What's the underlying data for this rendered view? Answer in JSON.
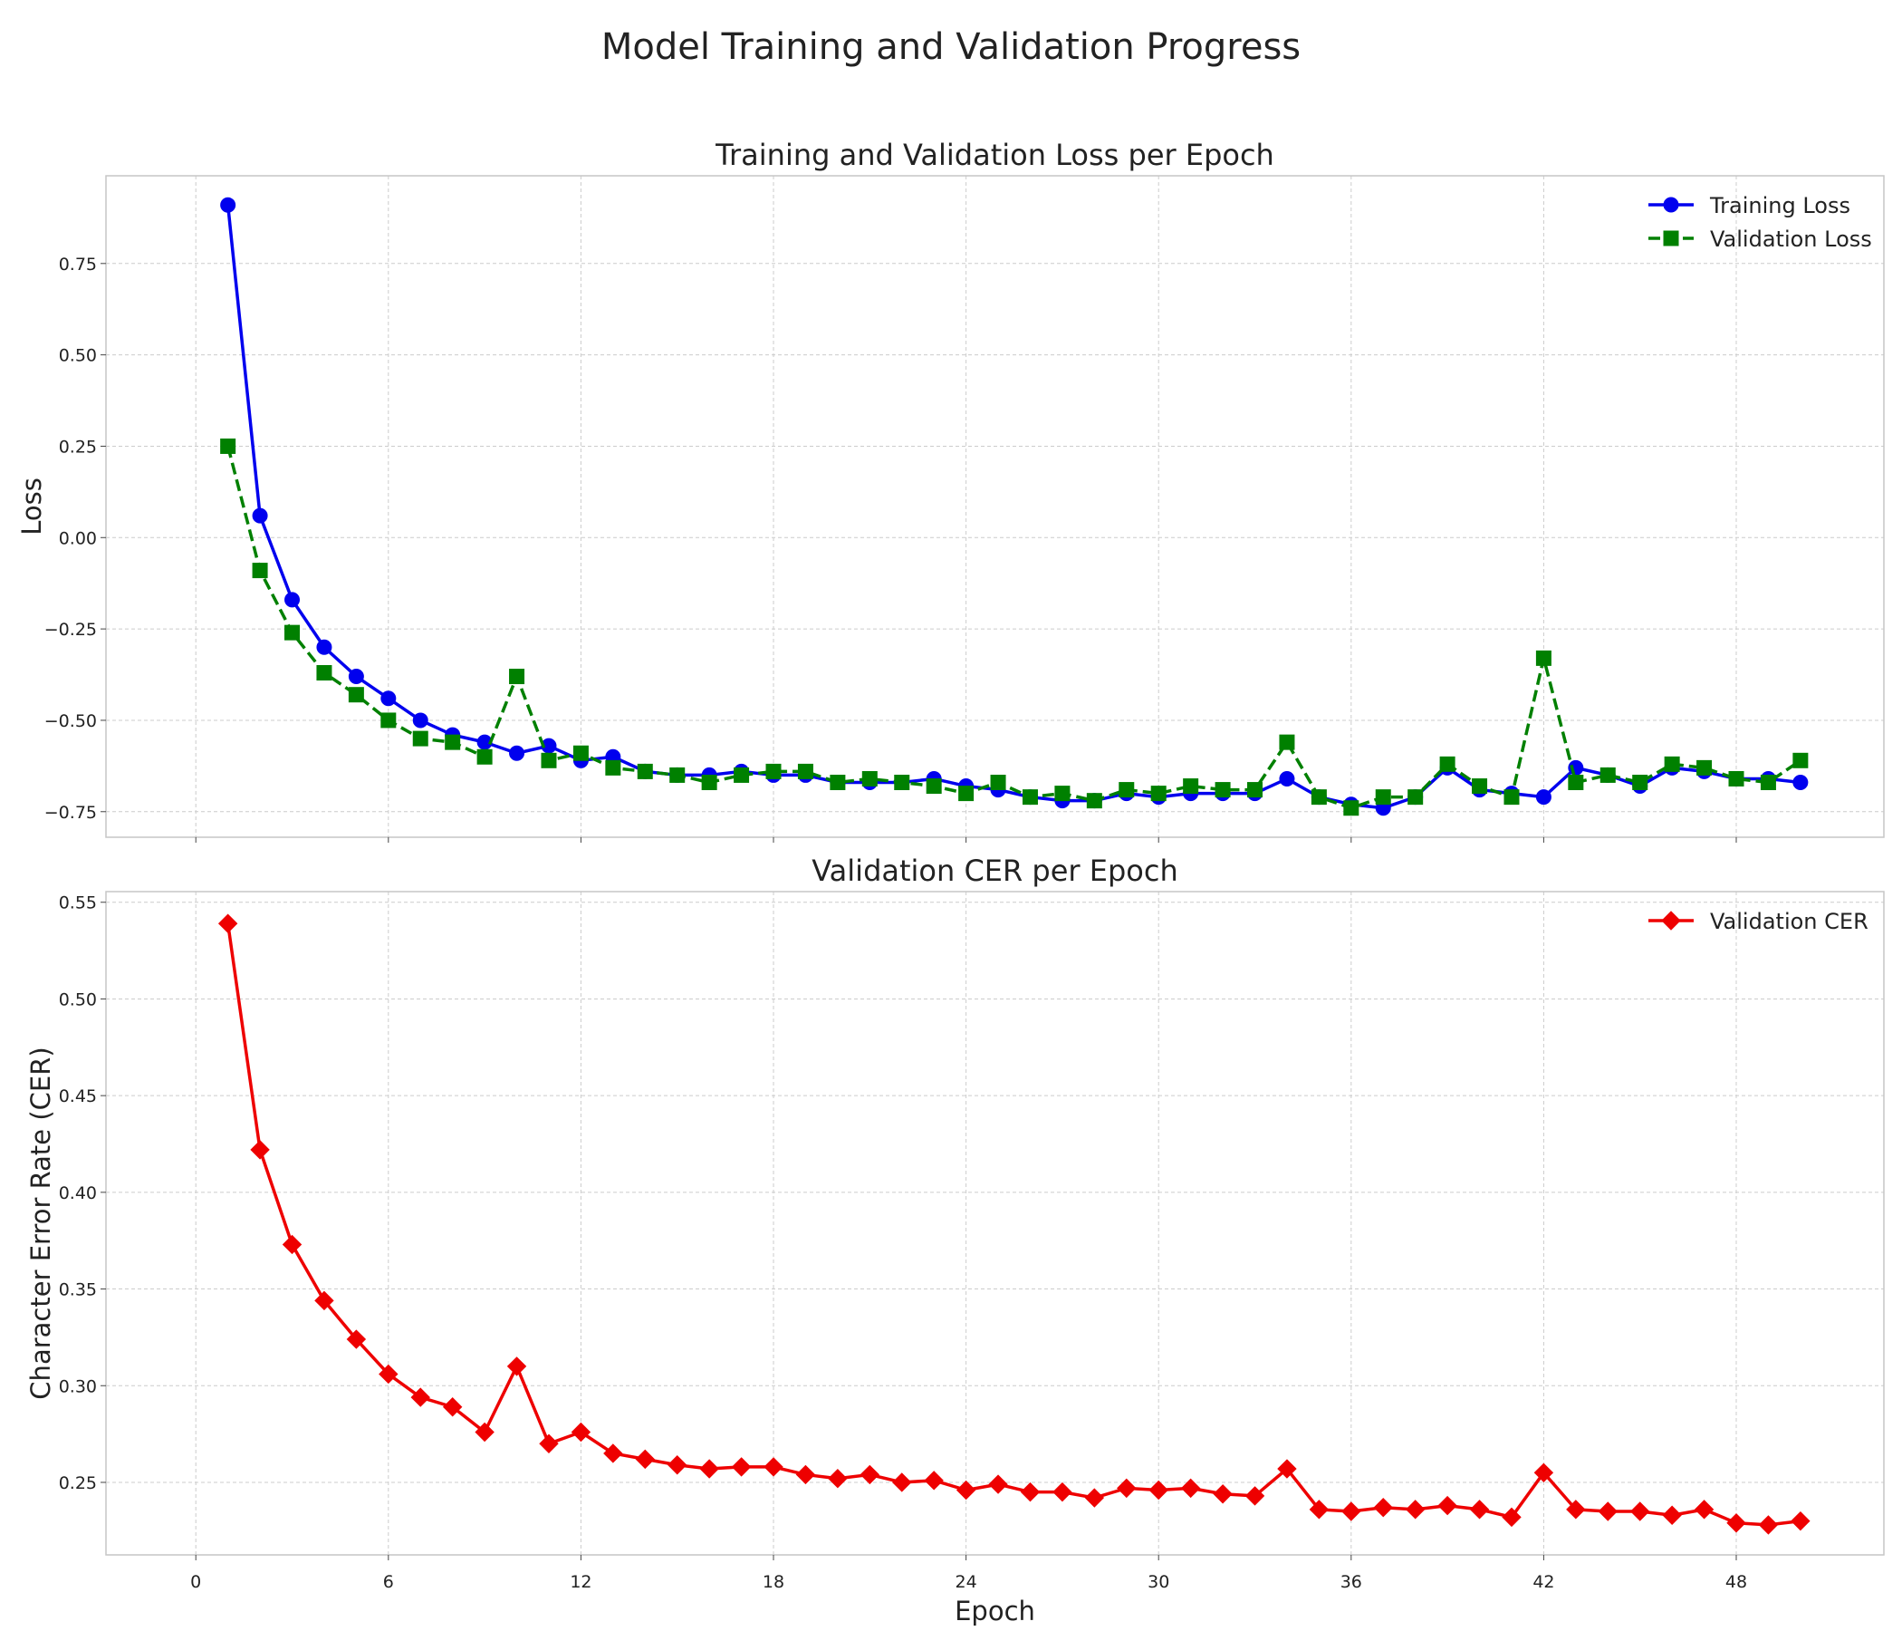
{
  "figure_title": "Model Training and Validation Progress",
  "chart_data": [
    {
      "type": "line",
      "title": "Training and Validation Loss per Epoch",
      "xlabel": "",
      "ylabel": "Loss",
      "xlim": [
        -2.8,
        52.6
      ],
      "ylim": [
        -0.82,
        0.99
      ],
      "x_ticks": [
        0,
        6,
        12,
        18,
        24,
        30,
        36,
        42,
        48
      ],
      "x_tick_labels": [
        "",
        "",
        "",
        "",
        "",
        "",
        "",
        "",
        ""
      ],
      "y_ticks": [
        -0.75,
        -0.5,
        -0.25,
        0.0,
        0.25,
        0.5,
        0.75
      ],
      "y_tick_labels": [
        "−0.75",
        "−0.50",
        "−0.25",
        "0.00",
        "0.25",
        "0.50",
        "0.75"
      ],
      "grid": true,
      "legend": "top-right",
      "x": [
        1,
        2,
        3,
        4,
        5,
        6,
        7,
        8,
        9,
        10,
        11,
        12,
        13,
        14,
        15,
        16,
        17,
        18,
        19,
        20,
        21,
        22,
        23,
        24,
        25,
        26,
        27,
        28,
        29,
        30,
        31,
        32,
        33,
        34,
        35,
        36,
        37,
        38,
        39,
        40,
        41,
        42,
        43,
        44,
        45,
        46,
        47,
        48,
        49,
        50
      ],
      "series": [
        {
          "name": "Training Loss",
          "color": "#0000ee",
          "marker": "circle",
          "dash": "solid",
          "values": [
            0.91,
            0.06,
            -0.17,
            -0.3,
            -0.38,
            -0.44,
            -0.5,
            -0.54,
            -0.56,
            -0.59,
            -0.57,
            -0.61,
            -0.6,
            -0.64,
            -0.65,
            -0.65,
            -0.64,
            -0.65,
            -0.65,
            -0.67,
            -0.67,
            -0.67,
            -0.66,
            -0.68,
            -0.69,
            -0.71,
            -0.72,
            -0.72,
            -0.7,
            -0.71,
            -0.7,
            -0.7,
            -0.7,
            -0.66,
            -0.71,
            -0.73,
            -0.74,
            -0.71,
            -0.63,
            -0.69,
            -0.7,
            -0.71,
            -0.63,
            -0.65,
            -0.68,
            -0.63,
            -0.64,
            -0.66,
            -0.66,
            -0.67
          ]
        },
        {
          "name": "Validation Loss",
          "color": "#008000",
          "marker": "square",
          "dash": "dashed",
          "values": [
            0.25,
            -0.09,
            -0.26,
            -0.37,
            -0.43,
            -0.5,
            -0.55,
            -0.56,
            -0.6,
            -0.38,
            -0.61,
            -0.59,
            -0.63,
            -0.64,
            -0.65,
            -0.67,
            -0.65,
            -0.64,
            -0.64,
            -0.67,
            -0.66,
            -0.67,
            -0.68,
            -0.7,
            -0.67,
            -0.71,
            -0.7,
            -0.72,
            -0.69,
            -0.7,
            -0.68,
            -0.69,
            -0.69,
            -0.56,
            -0.71,
            -0.74,
            -0.71,
            -0.71,
            -0.62,
            -0.68,
            -0.71,
            -0.33,
            -0.67,
            -0.65,
            -0.67,
            -0.62,
            -0.63,
            -0.66,
            -0.67,
            -0.61
          ]
        }
      ]
    },
    {
      "type": "line",
      "title": "Validation CER per Epoch",
      "xlabel": "Epoch",
      "ylabel": "Character Error Rate (CER)",
      "xlim": [
        -2.8,
        52.6
      ],
      "ylim": [
        0.2125,
        0.5555
      ],
      "x_ticks": [
        0,
        6,
        12,
        18,
        24,
        30,
        36,
        42,
        48
      ],
      "x_tick_labels": [
        "0",
        "6",
        "12",
        "18",
        "24",
        "30",
        "36",
        "42",
        "48"
      ],
      "y_ticks": [
        0.25,
        0.3,
        0.35,
        0.4,
        0.45,
        0.5,
        0.55
      ],
      "y_tick_labels": [
        "0.25",
        "0.30",
        "0.35",
        "0.40",
        "0.45",
        "0.50",
        "0.55"
      ],
      "grid": true,
      "legend": "top-right",
      "x": [
        1,
        2,
        3,
        4,
        5,
        6,
        7,
        8,
        9,
        10,
        11,
        12,
        13,
        14,
        15,
        16,
        17,
        18,
        19,
        20,
        21,
        22,
        23,
        24,
        25,
        26,
        27,
        28,
        29,
        30,
        31,
        32,
        33,
        34,
        35,
        36,
        37,
        38,
        39,
        40,
        41,
        42,
        43,
        44,
        45,
        46,
        47,
        48,
        49,
        50
      ],
      "series": [
        {
          "name": "Validation CER",
          "color": "#ee0000",
          "marker": "diamond",
          "dash": "solid",
          "values": [
            0.539,
            0.422,
            0.373,
            0.344,
            0.324,
            0.306,
            0.294,
            0.289,
            0.276,
            0.31,
            0.27,
            0.276,
            0.265,
            0.262,
            0.259,
            0.257,
            0.258,
            0.258,
            0.254,
            0.252,
            0.254,
            0.25,
            0.251,
            0.246,
            0.249,
            0.245,
            0.245,
            0.242,
            0.247,
            0.246,
            0.247,
            0.244,
            0.243,
            0.257,
            0.236,
            0.235,
            0.237,
            0.236,
            0.238,
            0.236,
            0.232,
            0.255,
            0.236,
            0.235,
            0.235,
            0.233,
            0.236,
            0.229,
            0.228,
            0.23
          ]
        }
      ]
    }
  ]
}
